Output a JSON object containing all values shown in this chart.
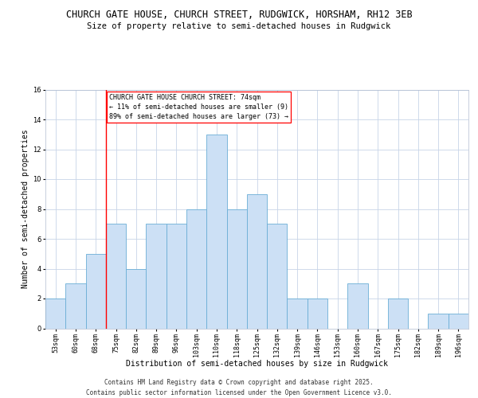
{
  "title_line1": "CHURCH GATE HOUSE, CHURCH STREET, RUDGWICK, HORSHAM, RH12 3EB",
  "title_line2": "Size of property relative to semi-detached houses in Rudgwick",
  "xlabel": "Distribution of semi-detached houses by size in Rudgwick",
  "ylabel": "Number of semi-detached properties",
  "categories": [
    "53sqm",
    "60sqm",
    "68sqm",
    "75sqm",
    "82sqm",
    "89sqm",
    "96sqm",
    "103sqm",
    "110sqm",
    "118sqm",
    "125sqm",
    "132sqm",
    "139sqm",
    "146sqm",
    "153sqm",
    "160sqm",
    "167sqm",
    "175sqm",
    "182sqm",
    "189sqm",
    "196sqm"
  ],
  "values": [
    2,
    3,
    5,
    7,
    4,
    7,
    7,
    8,
    13,
    8,
    9,
    7,
    2,
    2,
    0,
    3,
    0,
    2,
    0,
    1,
    1
  ],
  "bar_color": "#cce0f5",
  "bar_edge_color": "#6aaed6",
  "annotation_text": "CHURCH GATE HOUSE CHURCH STREET: 74sqm\n← 11% of semi-detached houses are smaller (9)\n89% of semi-detached houses are larger (73) →",
  "annotation_box_color": "white",
  "annotation_box_edge_color": "red",
  "ylim": [
    0,
    16
  ],
  "yticks": [
    0,
    2,
    4,
    6,
    8,
    10,
    12,
    14,
    16
  ],
  "grid_color": "#c8d4e8",
  "background_color": "white",
  "footer_line1": "Contains HM Land Registry data © Crown copyright and database right 2025.",
  "footer_line2": "Contains public sector information licensed under the Open Government Licence v3.0.",
  "title_fontsize": 8.5,
  "subtitle_fontsize": 7.5,
  "axis_label_fontsize": 7,
  "tick_fontsize": 6,
  "annotation_fontsize": 6,
  "footer_fontsize": 5.5
}
